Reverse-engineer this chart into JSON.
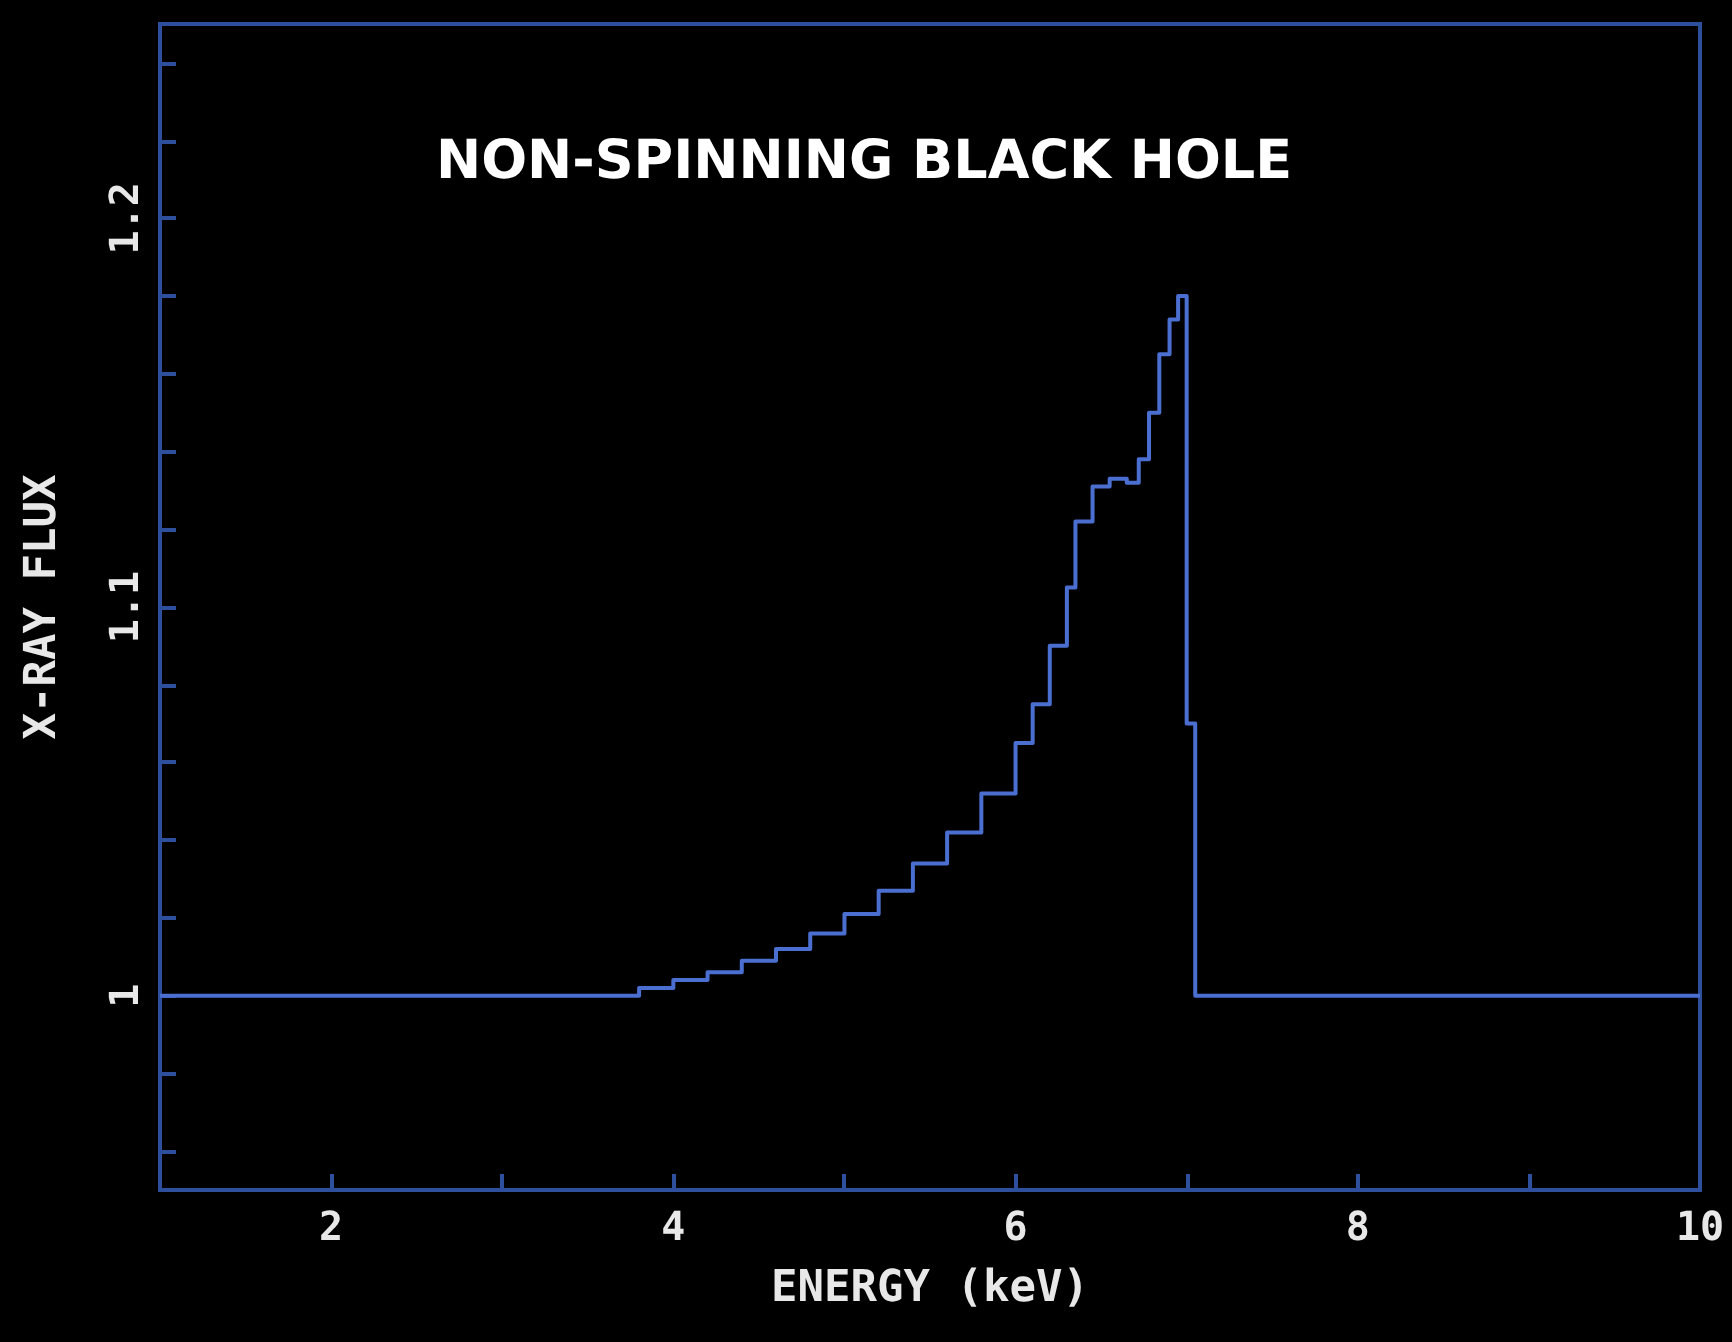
{
  "chart_data": {
    "type": "step",
    "title": "NON-SPINNING BLACK HOLE",
    "xlabel": "ENERGY (keV)",
    "ylabel": "X-RAY FLUX",
    "x": [
      1,
      3.8,
      4.0,
      4.2,
      4.4,
      4.6,
      4.8,
      5.0,
      5.2,
      5.4,
      5.6,
      5.8,
      6.0,
      6.1,
      6.2,
      6.3,
      6.35,
      6.45,
      6.55,
      6.65,
      6.72,
      6.78,
      6.84,
      6.9,
      6.95,
      7.0,
      7.05,
      10
    ],
    "series": [
      {
        "color": "#4a6fd0",
        "values": [
          1,
          1.002,
          1.004,
          1.006,
          1.009,
          1.012,
          1.016,
          1.021,
          1.027,
          1.034,
          1.042,
          1.052,
          1.065,
          1.075,
          1.09,
          1.105,
          1.122,
          1.131,
          1.133,
          1.132,
          1.138,
          1.15,
          1.165,
          1.174,
          1.18,
          1.07,
          1.0,
          1.0
        ]
      }
    ],
    "xlim": [
      1,
      10
    ],
    "xticks": [
      2,
      {
        "value": 3,
        "label": null
      },
      4,
      {
        "value": 5,
        "label": null
      },
      6,
      {
        "value": 7,
        "label": null
      },
      8,
      {
        "value": 9,
        "label": null
      },
      10
    ],
    "ylim": [
      0.95,
      1.25
    ],
    "yticks": [
      {
        "value": 0.96,
        "label": null
      },
      {
        "value": 0.98,
        "label": null
      },
      1,
      {
        "value": 1.02,
        "label": null
      },
      {
        "value": 1.04,
        "label": null
      },
      {
        "value": 1.06,
        "label": null
      },
      {
        "value": 1.08,
        "label": null
      },
      1.1,
      {
        "value": 1.12,
        "label": null
      },
      {
        "value": 1.14,
        "label": null
      },
      {
        "value": 1.16,
        "label": null
      },
      {
        "value": 1.18,
        "label": null
      },
      1.2,
      {
        "value": 1.22,
        "label": null
      },
      {
        "value": 1.24,
        "label": null
      }
    ],
    "grid": false,
    "marker": "none",
    "line_style": "solid"
  }
}
